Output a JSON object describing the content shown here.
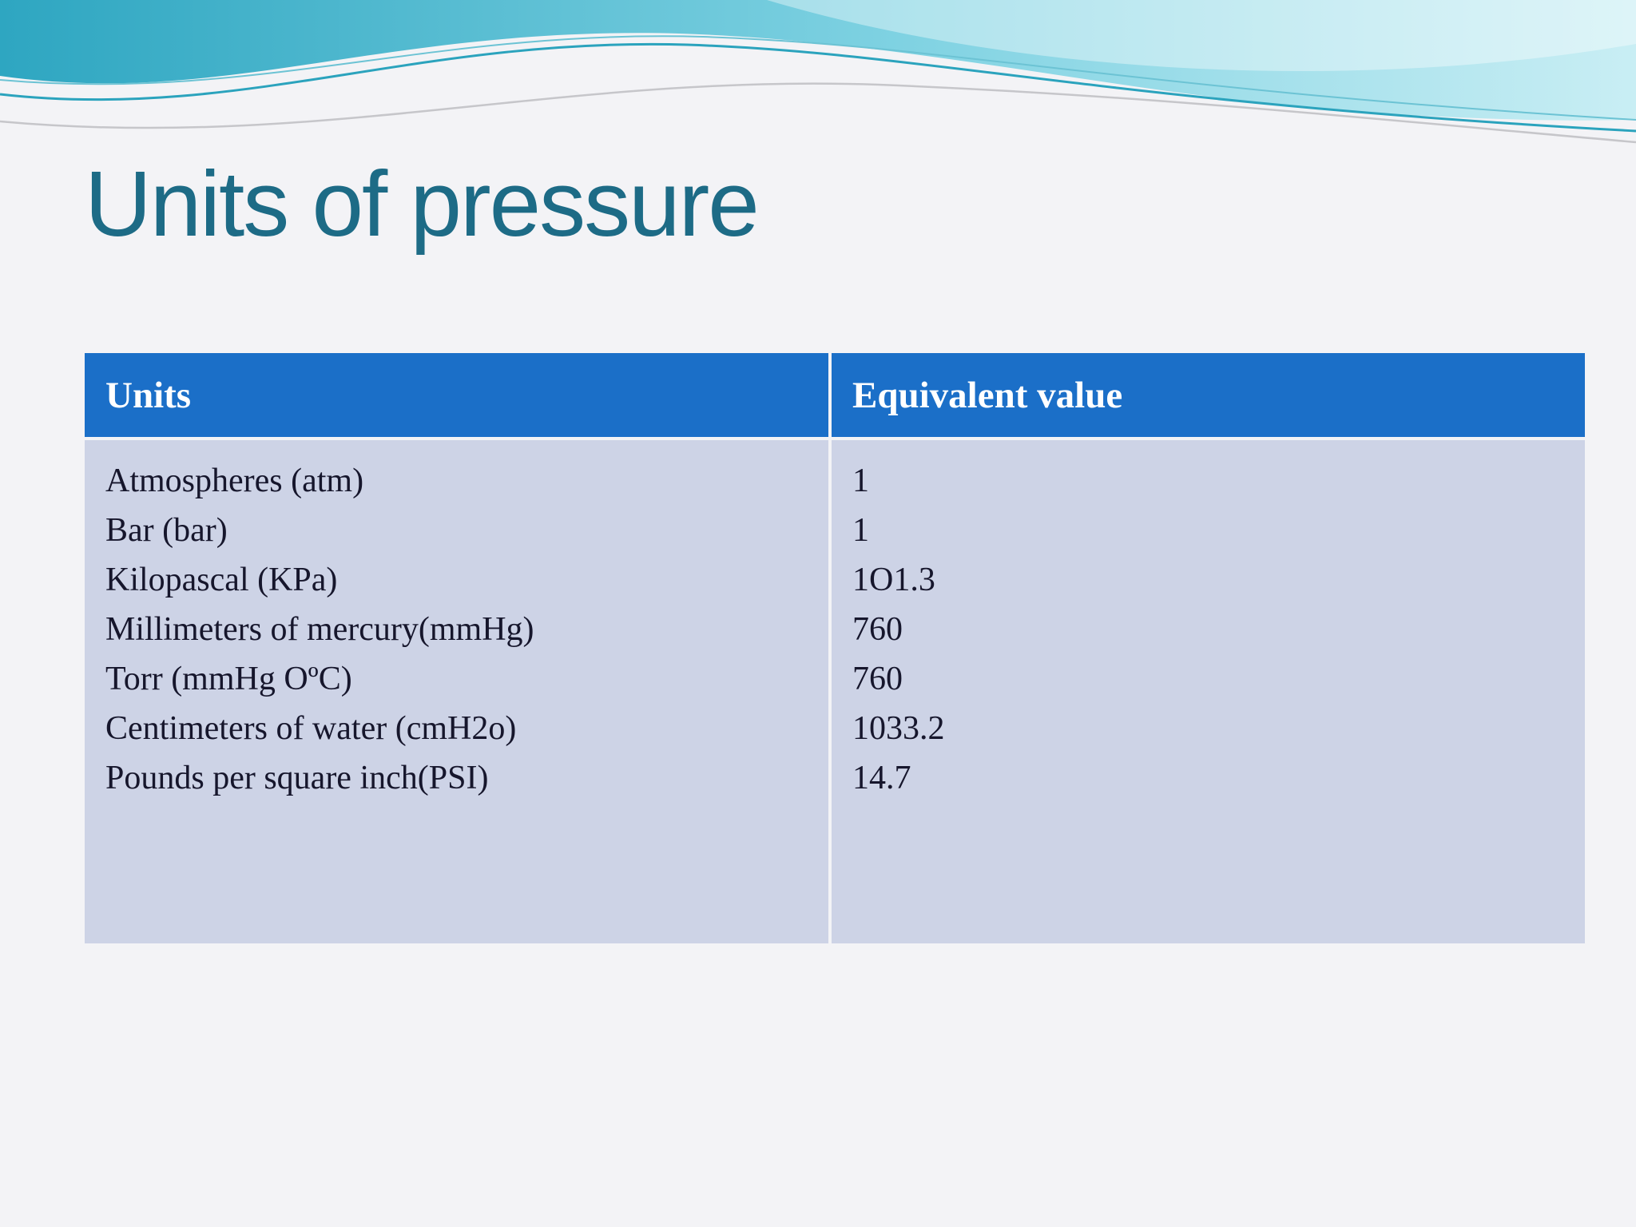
{
  "slide": {
    "title": "Units of pressure"
  },
  "table": {
    "headers": [
      "Units",
      "Equivalent value"
    ],
    "rows": [
      {
        "unit": "Atmospheres (atm)",
        "value": "1"
      },
      {
        "unit": "Bar (bar)",
        "value": "1"
      },
      {
        "unit": "Kilopascal (KPa)",
        "value": "1O1.3"
      },
      {
        "unit": "Millimeters of mercury(mmHg)",
        "value": "760"
      },
      {
        "unit": "Torr (mmHg OºC)",
        "value": "760"
      },
      {
        "unit": "Centimeters of water (cmH2o)",
        "value": "1033.2"
      },
      {
        "unit": "Pounds per square inch(PSI)",
        "value": "14.7"
      }
    ]
  },
  "colors": {
    "header_bg": "#1b6fc8",
    "body_bg": "#cdd3e6",
    "header_text": "#ffffff",
    "title_text": "#1d6b86",
    "wave_teal": "#35aec8",
    "wave_light": "#c9eef4",
    "slide_bg": "#f3f3f6"
  }
}
